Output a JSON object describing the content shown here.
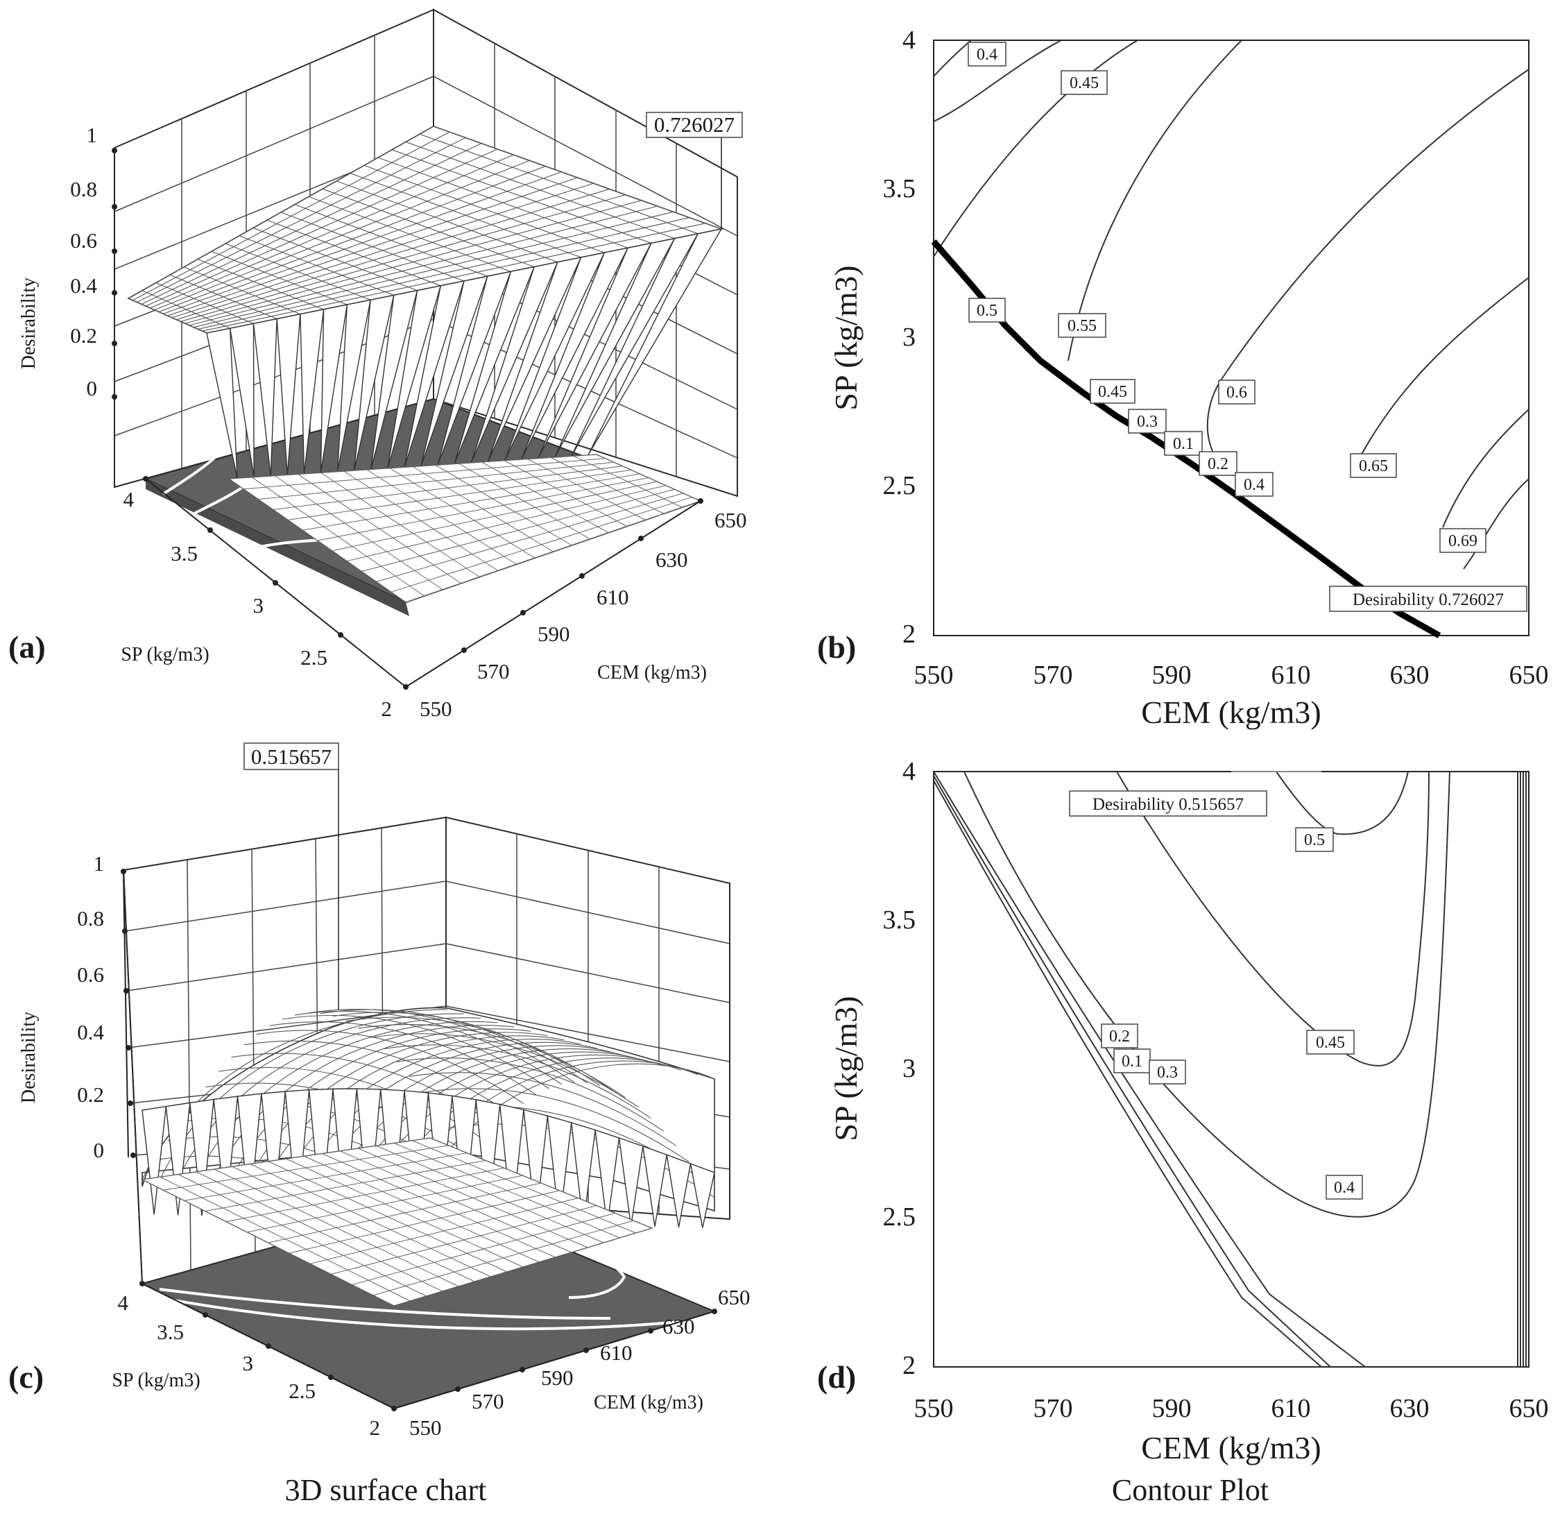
{
  "captions": {
    "left": "3D surface chart",
    "right": "Contour Plot"
  },
  "panel_labels": {
    "a": "(a)",
    "b": "(b)",
    "c": "(c)",
    "d": "(d)"
  },
  "chart_data": [
    {
      "id": "a",
      "type": "surface3d",
      "zlabel": "Desirability",
      "xlabel": "CEM (kg/m3)",
      "ylabel": "SP (kg/m3)",
      "z_ticks": [
        "0",
        "0.2",
        "0.4",
        "0.6",
        "0.8",
        "1"
      ],
      "x_ticks": [
        "550",
        "570",
        "590",
        "610",
        "630",
        "650"
      ],
      "y_ticks": [
        "2",
        "2.5",
        "3",
        "3.5",
        "4"
      ],
      "xlim": [
        550,
        650
      ],
      "ylim": [
        2,
        4
      ],
      "zlim": [
        0,
        1
      ],
      "max_label": "0.726027",
      "max_point": {
        "cem": 650,
        "sp": 2.0,
        "desirability": 0.726027
      }
    },
    {
      "id": "b",
      "type": "contour",
      "xlabel": "CEM (kg/m3)",
      "ylabel": "SP (kg/m3)",
      "x_ticks": [
        "550",
        "570",
        "590",
        "610",
        "630",
        "650"
      ],
      "y_ticks": [
        "2",
        "2.5",
        "3",
        "3.5",
        "4"
      ],
      "xlim": [
        550,
        650
      ],
      "ylim": [
        2,
        4
      ],
      "contour_labels": [
        "0.4",
        "0.45",
        "0.5",
        "0.55",
        "0.45",
        "0.6",
        "0.3",
        "0.1",
        "0.2",
        "0.4",
        "0.65",
        "0.69"
      ],
      "max_label": "Desirability  0.726027",
      "max_point": {
        "cem": 650,
        "sp": 2.0,
        "desirability": 0.726027
      }
    },
    {
      "id": "c",
      "type": "surface3d",
      "zlabel": "Desirability",
      "xlabel": "CEM (kg/m3)",
      "ylabel": "SP (kg/m3)",
      "z_ticks": [
        "0",
        "0.2",
        "0.4",
        "0.6",
        "0.8",
        "1"
      ],
      "x_ticks": [
        "550",
        "570",
        "590",
        "610",
        "630",
        "650"
      ],
      "y_ticks": [
        "2",
        "2.5",
        "3",
        "3.5",
        "4"
      ],
      "xlim": [
        550,
        650
      ],
      "ylim": [
        2,
        4
      ],
      "zlim": [
        0,
        1
      ],
      "max_label": "0.515657",
      "max_point": {
        "cem": 618,
        "sp": 4.0,
        "desirability": 0.515657
      }
    },
    {
      "id": "d",
      "type": "contour",
      "xlabel": "CEM (kg/m3)",
      "ylabel": "SP (kg/m3)",
      "x_ticks": [
        "550",
        "570",
        "590",
        "610",
        "630",
        "650"
      ],
      "y_ticks": [
        "2",
        "2.5",
        "3",
        "3.5",
        "4"
      ],
      "xlim": [
        550,
        650
      ],
      "ylim": [
        2,
        4
      ],
      "contour_labels": [
        "0.5",
        "0.45",
        "0.4",
        "0.2",
        "0.1",
        "0.3"
      ],
      "max_label": "Desirability  0.515657",
      "max_point": {
        "cem": 614,
        "sp": 4.0,
        "desirability": 0.515657
      }
    }
  ]
}
